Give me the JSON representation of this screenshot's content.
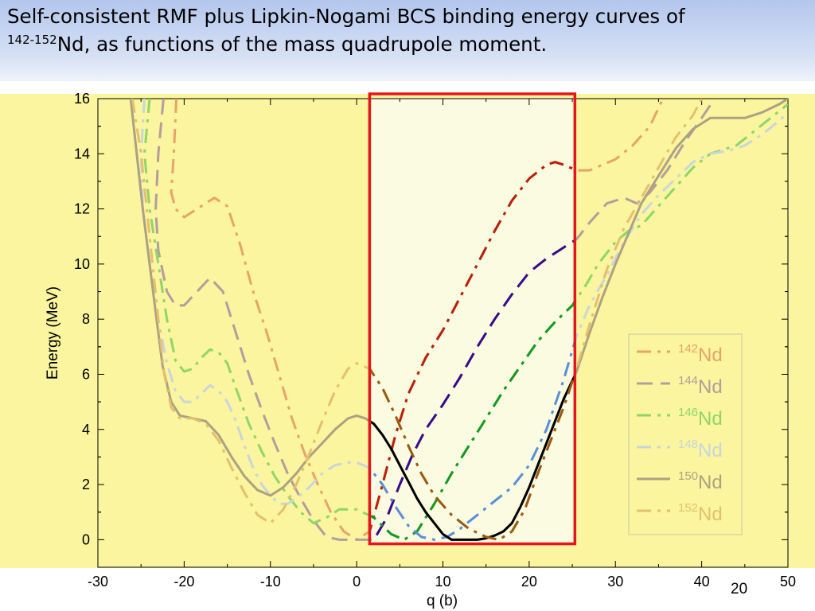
{
  "slide": {
    "title_superscript": "142-152",
    "title_line1": "Self-consistent RMF plus Lipkin-Nogami BCS binding energy curves of",
    "title_line2": "Nd, as functions of the mass quadrupole moment.",
    "page_number": "20"
  },
  "colors": {
    "highlight_background": "#faf59e",
    "focus_background": "#fbfbe1",
    "focus_box": "#e8141b",
    "title_bar": "#c5d4f1"
  },
  "chart_data": {
    "type": "line",
    "xlabel": "q (b)",
    "ylabel": "Energy (MeV)",
    "xlim": [
      -30,
      50
    ],
    "ylim": [
      -1,
      16
    ],
    "xticks": [
      -30,
      -20,
      -10,
      0,
      10,
      20,
      30,
      40,
      50
    ],
    "yticks": [
      0,
      2,
      4,
      6,
      8,
      10,
      12,
      14,
      16
    ],
    "grid": false,
    "legend_position": "lower-right",
    "highlight_region": {
      "x": [
        1.5,
        25.3
      ],
      "y": [
        -0.15,
        16
      ]
    },
    "series": [
      {
        "name": "Nd",
        "mass_number": "142",
        "color": "#e8a36a",
        "focus_color": "#b8200a",
        "dash": "dashdot",
        "points": [
          [
            -20.9,
            16
          ],
          [
            -21.2,
            14
          ],
          [
            -21.5,
            12.6
          ],
          [
            -21,
            12
          ],
          [
            -20,
            11.7
          ],
          [
            -18.5,
            12
          ],
          [
            -16.5,
            12.4
          ],
          [
            -15,
            12.1
          ],
          [
            -13.5,
            10.7
          ],
          [
            -12,
            9
          ],
          [
            -10.5,
            7.6
          ],
          [
            -9,
            6
          ],
          [
            -7.5,
            4.4
          ],
          [
            -6,
            3.1
          ],
          [
            -4.5,
            2
          ],
          [
            -3,
            1
          ],
          [
            -1.5,
            0.3
          ],
          [
            0,
            0
          ],
          [
            1.5,
            0.3
          ],
          [
            3,
            2
          ],
          [
            4.5,
            3.8
          ],
          [
            6,
            5.3
          ],
          [
            8,
            6.6
          ],
          [
            10,
            7.6
          ],
          [
            12,
            8.8
          ],
          [
            14,
            10
          ],
          [
            16,
            11.2
          ],
          [
            18,
            12.3
          ],
          [
            20,
            13.1
          ],
          [
            22,
            13.6
          ],
          [
            23,
            13.7
          ],
          [
            24,
            13.6
          ],
          [
            25.5,
            13.4
          ],
          [
            27,
            13.4
          ],
          [
            30,
            13.8
          ],
          [
            32,
            14.3
          ],
          [
            34,
            15
          ],
          [
            35.5,
            16
          ]
        ]
      },
      {
        "name": "Nd",
        "mass_number": "144",
        "color": "#b29e9c",
        "focus_color": "#3a0b8a",
        "dash": "dash",
        "points": [
          [
            -22.4,
            16
          ],
          [
            -23,
            14
          ],
          [
            -23.3,
            12
          ],
          [
            -23,
            10.5
          ],
          [
            -22,
            9
          ],
          [
            -21,
            8.5
          ],
          [
            -20,
            8.5
          ],
          [
            -18.5,
            9
          ],
          [
            -17,
            9.5
          ],
          [
            -15.5,
            9
          ],
          [
            -14,
            7.5
          ],
          [
            -12.5,
            6
          ],
          [
            -11,
            4.7
          ],
          [
            -9.5,
            3.5
          ],
          [
            -8,
            2.4
          ],
          [
            -6.5,
            1.5
          ],
          [
            -5,
            0.7
          ],
          [
            -3.5,
            0.1
          ],
          [
            -2,
            0
          ],
          [
            0,
            0
          ],
          [
            2,
            0
          ],
          [
            3.5,
            0.8
          ],
          [
            5,
            2
          ],
          [
            6.5,
            3.1
          ],
          [
            8,
            4
          ],
          [
            10,
            4.9
          ],
          [
            12,
            5.9
          ],
          [
            14,
            7
          ],
          [
            16,
            8
          ],
          [
            18,
            8.9
          ],
          [
            20,
            9.7
          ],
          [
            22,
            10.2
          ],
          [
            24,
            10.6
          ],
          [
            25.5,
            10.9
          ],
          [
            27,
            11.5
          ],
          [
            29,
            12.2
          ],
          [
            31,
            12.4
          ],
          [
            32.5,
            12.2
          ],
          [
            34,
            12.6
          ],
          [
            36,
            13.4
          ],
          [
            38,
            14.4
          ],
          [
            40,
            15.3
          ],
          [
            41.5,
            16
          ]
        ]
      },
      {
        "name": "Nd",
        "mass_number": "146",
        "color": "#8fd56a",
        "focus_color": "#139a20",
        "dash": "dashdot",
        "points": [
          [
            -24,
            16
          ],
          [
            -24.6,
            14
          ],
          [
            -24,
            12
          ],
          [
            -23,
            10
          ],
          [
            -22,
            8
          ],
          [
            -21,
            6.5
          ],
          [
            -20,
            6.1
          ],
          [
            -19,
            6.2
          ],
          [
            -18,
            6.6
          ],
          [
            -17,
            6.9
          ],
          [
            -16,
            6.8
          ],
          [
            -15,
            6.4
          ],
          [
            -14,
            5.5
          ],
          [
            -12.5,
            4.2
          ],
          [
            -11,
            3.2
          ],
          [
            -9.5,
            2.3
          ],
          [
            -8,
            1.6
          ],
          [
            -6.5,
            1
          ],
          [
            -5,
            0.6
          ],
          [
            -3.5,
            0.8
          ],
          [
            -2,
            1.1
          ],
          [
            0,
            1.1
          ],
          [
            2,
            0.8
          ],
          [
            4,
            0.2
          ],
          [
            5.5,
            0
          ],
          [
            7,
            0.3
          ],
          [
            9,
            1.3
          ],
          [
            11,
            2.4
          ],
          [
            13,
            3.4
          ],
          [
            15,
            4.4
          ],
          [
            17,
            5.4
          ],
          [
            19,
            6.3
          ],
          [
            21,
            7.2
          ],
          [
            23,
            7.9
          ],
          [
            25,
            8.5
          ],
          [
            26.5,
            9.2
          ],
          [
            28,
            10
          ],
          [
            30,
            10.8
          ],
          [
            31.5,
            11.2
          ],
          [
            33,
            11.4
          ],
          [
            35,
            12.1
          ],
          [
            37,
            12.8
          ],
          [
            39,
            13.5
          ],
          [
            41,
            14
          ],
          [
            44,
            14.3
          ],
          [
            46,
            14.8
          ],
          [
            48,
            15.3
          ],
          [
            50,
            15.8
          ]
        ]
      },
      {
        "name": "Nd",
        "mass_number": "148",
        "color": "#c8d6dc",
        "focus_color": "#5a90d8",
        "dash": "dashdot",
        "points": [
          [
            -24.6,
            16
          ],
          [
            -25,
            14
          ],
          [
            -24.8,
            12
          ],
          [
            -24,
            10
          ],
          [
            -23,
            8
          ],
          [
            -22,
            6.4
          ],
          [
            -21,
            5.4
          ],
          [
            -20,
            5
          ],
          [
            -19,
            5
          ],
          [
            -18,
            5.3
          ],
          [
            -17,
            5.6
          ],
          [
            -16,
            5.4
          ],
          [
            -15,
            5
          ],
          [
            -14,
            4.3
          ],
          [
            -13,
            3.4
          ],
          [
            -12,
            2.6
          ],
          [
            -11,
            2
          ],
          [
            -10,
            1.6
          ],
          [
            -9,
            1.3
          ],
          [
            -8,
            1.3
          ],
          [
            -7,
            1.5
          ],
          [
            -5.5,
            1.9
          ],
          [
            -4,
            2.4
          ],
          [
            -2.5,
            2.7
          ],
          [
            -1,
            2.8
          ],
          [
            0,
            2.8
          ],
          [
            1.5,
            2.6
          ],
          [
            3,
            2
          ],
          [
            4.5,
            1.2
          ],
          [
            6,
            0.5
          ],
          [
            7.5,
            0.1
          ],
          [
            9,
            0
          ],
          [
            10.5,
            0.1
          ],
          [
            12,
            0.4
          ],
          [
            14,
            0.9
          ],
          [
            16,
            1.4
          ],
          [
            18,
            1.9
          ],
          [
            20,
            2.7
          ],
          [
            22,
            4
          ],
          [
            24,
            5.8
          ],
          [
            25.5,
            7.4
          ],
          [
            27,
            8.5
          ],
          [
            29,
            9.6
          ],
          [
            31,
            10.8
          ],
          [
            33,
            11.8
          ],
          [
            35,
            12.5
          ],
          [
            37,
            13.1
          ],
          [
            39,
            13.7
          ],
          [
            41,
            14
          ],
          [
            43,
            14.1
          ],
          [
            45,
            14.3
          ],
          [
            47,
            14.7
          ],
          [
            49,
            15.2
          ],
          [
            50,
            15.5
          ]
        ]
      },
      {
        "name": "Nd",
        "mass_number": "150",
        "color": "#aca282",
        "focus_color": "#000000",
        "dash": "solid",
        "points": [
          [
            -26.2,
            16
          ],
          [
            -25.5,
            14
          ],
          [
            -24.8,
            12
          ],
          [
            -24,
            10
          ],
          [
            -23.2,
            8
          ],
          [
            -22.5,
            6.3
          ],
          [
            -21.5,
            5
          ],
          [
            -20.5,
            4.5
          ],
          [
            -19,
            4.4
          ],
          [
            -17.5,
            4.3
          ],
          [
            -16,
            3.8
          ],
          [
            -14.5,
            3
          ],
          [
            -13,
            2.3
          ],
          [
            -11.5,
            1.8
          ],
          [
            -10,
            1.6
          ],
          [
            -8.5,
            1.9
          ],
          [
            -7,
            2.4
          ],
          [
            -5.5,
            3
          ],
          [
            -4,
            3.5
          ],
          [
            -2.5,
            4
          ],
          [
            -1,
            4.4
          ],
          [
            0,
            4.5
          ],
          [
            1,
            4.4
          ],
          [
            2,
            4.2
          ],
          [
            3,
            3.8
          ],
          [
            4,
            3.3
          ],
          [
            5,
            2.7
          ],
          [
            6,
            2.1
          ],
          [
            7,
            1.5
          ],
          [
            8,
            1
          ],
          [
            9,
            0.6
          ],
          [
            10,
            0.2
          ],
          [
            11,
            0
          ],
          [
            12,
            0
          ],
          [
            13,
            0
          ],
          [
            14,
            0
          ],
          [
            15,
            0.05
          ],
          [
            16,
            0.15
          ],
          [
            17,
            0.3
          ],
          [
            18,
            0.6
          ],
          [
            19,
            1.2
          ],
          [
            20,
            1.9
          ],
          [
            21,
            2.7
          ],
          [
            22,
            3.5
          ],
          [
            23,
            4.3
          ],
          [
            24,
            5.1
          ],
          [
            25.5,
            6.1
          ],
          [
            27,
            7.5
          ],
          [
            28.5,
            8.8
          ],
          [
            30,
            10
          ],
          [
            31.5,
            11.1
          ],
          [
            33,
            12.2
          ],
          [
            35,
            13.2
          ],
          [
            37,
            14.2
          ],
          [
            39,
            14.9
          ],
          [
            41,
            15.3
          ],
          [
            43,
            15.3
          ],
          [
            45,
            15.3
          ],
          [
            47,
            15.5
          ],
          [
            49,
            15.8
          ],
          [
            50,
            16
          ]
        ]
      },
      {
        "name": "Nd",
        "mass_number": "152",
        "color": "#e6bf6e",
        "focus_color": "#9a5a12",
        "dash": "dashdot",
        "points": [
          [
            -26,
            16
          ],
          [
            -25,
            14
          ],
          [
            -24,
            11
          ],
          [
            -23,
            8
          ],
          [
            -22.3,
            6
          ],
          [
            -21.5,
            4.8
          ],
          [
            -20.5,
            4.4
          ],
          [
            -19,
            4.4
          ],
          [
            -17.5,
            4.2
          ],
          [
            -16,
            3.6
          ],
          [
            -14.5,
            2.6
          ],
          [
            -13,
            1.7
          ],
          [
            -11.5,
            0.9
          ],
          [
            -10,
            0.6
          ],
          [
            -8.5,
            1.1
          ],
          [
            -7,
            2
          ],
          [
            -5.5,
            3.1
          ],
          [
            -4,
            4.3
          ],
          [
            -2.5,
            5.4
          ],
          [
            -1,
            6.2
          ],
          [
            0,
            6.4
          ],
          [
            1.5,
            6.2
          ],
          [
            3,
            5.5
          ],
          [
            4.5,
            4.5
          ],
          [
            6,
            3.4
          ],
          [
            7.5,
            2.4
          ],
          [
            9,
            1.6
          ],
          [
            11,
            0.9
          ],
          [
            13,
            0.4
          ],
          [
            15,
            0.1
          ],
          [
            16.5,
            0
          ],
          [
            18,
            0.3
          ],
          [
            19.5,
            1.1
          ],
          [
            21,
            2.4
          ],
          [
            22.5,
            3.6
          ],
          [
            24,
            4.8
          ],
          [
            25.5,
            6.2
          ],
          [
            27,
            7.8
          ],
          [
            29,
            9.8
          ],
          [
            31,
            11.3
          ],
          [
            33,
            12.4
          ],
          [
            35,
            13.5
          ],
          [
            37,
            14.6
          ],
          [
            39,
            15.4
          ],
          [
            40,
            16
          ]
        ]
      }
    ]
  }
}
